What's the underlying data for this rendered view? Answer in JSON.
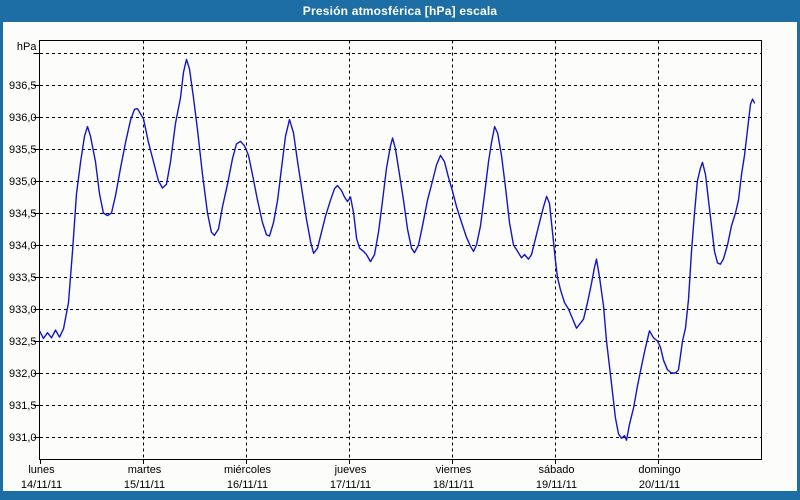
{
  "window": {
    "title": "Presión atmosférica [hPa] escala"
  },
  "colors": {
    "titlebar_bg": "#1C6EA4",
    "titlebar_text": "#FFFFFF",
    "frame": "#1C6EA4",
    "chart_bg": "#FCFDFB",
    "line": "#1414C8",
    "grid": "#000000",
    "axis_text": "#000000"
  },
  "chart_data": {
    "type": "line",
    "title": "Presión atmosférica [hPa] escala",
    "ylabel": "hPa",
    "grid": true,
    "legend": "none",
    "xlim_days": [
      0,
      7
    ],
    "ylim": [
      930.65,
      937.2
    ],
    "yticks": [
      {
        "v": 936.5,
        "label": "936,5"
      },
      {
        "v": 936.0,
        "label": "936,0"
      },
      {
        "v": 935.5,
        "label": "935,5"
      },
      {
        "v": 935.0,
        "label": "935,0"
      },
      {
        "v": 934.5,
        "label": "934,5"
      },
      {
        "v": 934.0,
        "label": "934,0"
      },
      {
        "v": 933.5,
        "label": "933,5"
      },
      {
        "v": 933.0,
        "label": "933,0"
      },
      {
        "v": 932.5,
        "label": "932,5"
      },
      {
        "v": 932.0,
        "label": "932,0"
      },
      {
        "v": 931.5,
        "label": "931,5"
      },
      {
        "v": 931.0,
        "label": "931,0"
      }
    ],
    "unlabeled_gridlines": [
      937.0
    ],
    "days": [
      {
        "name": "lunes",
        "date": "14/11/11"
      },
      {
        "name": "martes",
        "date": "15/11/11"
      },
      {
        "name": "miércoles",
        "date": "16/11/11"
      },
      {
        "name": "jueves",
        "date": "17/11/11"
      },
      {
        "name": "viernes",
        "date": "18/11/11"
      },
      {
        "name": "sábado",
        "date": "19/11/11"
      },
      {
        "name": "domingo",
        "date": "20/11/11"
      }
    ],
    "points": [
      [
        0.0,
        932.66
      ],
      [
        0.039,
        932.54
      ],
      [
        0.078,
        932.63
      ],
      [
        0.116,
        932.55
      ],
      [
        0.155,
        932.67
      ],
      [
        0.194,
        932.56
      ],
      [
        0.233,
        932.69
      ],
      [
        0.281,
        933.1
      ],
      [
        0.32,
        933.9
      ],
      [
        0.359,
        934.8
      ],
      [
        0.398,
        935.3
      ],
      [
        0.436,
        935.7
      ],
      [
        0.465,
        935.85
      ],
      [
        0.494,
        935.7
      ],
      [
        0.543,
        935.3
      ],
      [
        0.582,
        934.8
      ],
      [
        0.62,
        934.5
      ],
      [
        0.659,
        934.46
      ],
      [
        0.698,
        934.5
      ],
      [
        0.737,
        934.77
      ],
      [
        0.785,
        935.2
      ],
      [
        0.834,
        935.6
      ],
      [
        0.882,
        935.95
      ],
      [
        0.921,
        936.12
      ],
      [
        0.95,
        936.13
      ],
      [
        0.979,
        936.05
      ],
      [
        1.008,
        935.97
      ],
      [
        1.057,
        935.6
      ],
      [
        1.105,
        935.3
      ],
      [
        1.154,
        935.0
      ],
      [
        1.193,
        934.89
      ],
      [
        1.231,
        934.95
      ],
      [
        1.27,
        935.3
      ],
      [
        1.319,
        935.9
      ],
      [
        1.367,
        936.3
      ],
      [
        1.396,
        936.7
      ],
      [
        1.425,
        936.9
      ],
      [
        1.454,
        936.75
      ],
      [
        1.493,
        936.3
      ],
      [
        1.532,
        935.8
      ],
      [
        1.58,
        935.1
      ],
      [
        1.629,
        934.5
      ],
      [
        1.667,
        934.2
      ],
      [
        1.696,
        934.15
      ],
      [
        1.735,
        934.25
      ],
      [
        1.774,
        934.6
      ],
      [
        1.823,
        934.95
      ],
      [
        1.871,
        935.35
      ],
      [
        1.91,
        935.58
      ],
      [
        1.949,
        935.62
      ],
      [
        1.988,
        935.55
      ],
      [
        2.026,
        935.4
      ],
      [
        2.065,
        935.1
      ],
      [
        2.114,
        934.7
      ],
      [
        2.162,
        934.35
      ],
      [
        2.201,
        934.16
      ],
      [
        2.23,
        934.14
      ],
      [
        2.269,
        934.35
      ],
      [
        2.308,
        934.7
      ],
      [
        2.346,
        935.2
      ],
      [
        2.385,
        935.7
      ],
      [
        2.424,
        935.96
      ],
      [
        2.463,
        935.75
      ],
      [
        2.502,
        935.3
      ],
      [
        2.55,
        934.8
      ],
      [
        2.589,
        934.4
      ],
      [
        2.628,
        934.05
      ],
      [
        2.657,
        933.87
      ],
      [
        2.695,
        933.95
      ],
      [
        2.734,
        934.2
      ],
      [
        2.773,
        934.45
      ],
      [
        2.821,
        934.7
      ],
      [
        2.86,
        934.88
      ],
      [
        2.889,
        934.93
      ],
      [
        2.928,
        934.85
      ],
      [
        2.957,
        934.75
      ],
      [
        2.986,
        934.68
      ],
      [
        3.015,
        934.75
      ],
      [
        3.045,
        934.5
      ],
      [
        3.074,
        934.1
      ],
      [
        3.103,
        933.95
      ],
      [
        3.141,
        933.9
      ],
      [
        3.17,
        933.85
      ],
      [
        3.209,
        933.74
      ],
      [
        3.248,
        933.85
      ],
      [
        3.287,
        934.2
      ],
      [
        3.326,
        934.7
      ],
      [
        3.364,
        935.2
      ],
      [
        3.403,
        935.55
      ],
      [
        3.423,
        935.67
      ],
      [
        3.452,
        935.5
      ],
      [
        3.49,
        935.1
      ],
      [
        3.529,
        934.7
      ],
      [
        3.568,
        934.25
      ],
      [
        3.607,
        933.95
      ],
      [
        3.636,
        933.88
      ],
      [
        3.675,
        934.0
      ],
      [
        3.713,
        934.3
      ],
      [
        3.762,
        934.7
      ],
      [
        3.81,
        935.0
      ],
      [
        3.849,
        935.25
      ],
      [
        3.888,
        935.4
      ],
      [
        3.927,
        935.3
      ],
      [
        3.966,
        935.05
      ],
      [
        4.004,
        934.84
      ],
      [
        4.043,
        934.6
      ],
      [
        4.092,
        934.35
      ],
      [
        4.14,
        934.12
      ],
      [
        4.179,
        933.98
      ],
      [
        4.208,
        933.9
      ],
      [
        4.237,
        934.0
      ],
      [
        4.276,
        934.3
      ],
      [
        4.315,
        934.8
      ],
      [
        4.353,
        935.3
      ],
      [
        4.382,
        935.6
      ],
      [
        4.412,
        935.85
      ],
      [
        4.441,
        935.75
      ],
      [
        4.479,
        935.4
      ],
      [
        4.518,
        934.9
      ],
      [
        4.557,
        934.35
      ],
      [
        4.596,
        934.0
      ],
      [
        4.635,
        933.9
      ],
      [
        4.673,
        933.8
      ],
      [
        4.702,
        933.85
      ],
      [
        4.741,
        933.78
      ],
      [
        4.77,
        933.85
      ],
      [
        4.809,
        934.1
      ],
      [
        4.848,
        934.35
      ],
      [
        4.887,
        934.6
      ],
      [
        4.916,
        934.76
      ],
      [
        4.945,
        934.65
      ],
      [
        4.974,
        934.2
      ],
      [
        5.003,
        933.75
      ],
      [
        5.022,
        933.49
      ],
      [
        5.051,
        933.3
      ],
      [
        5.09,
        933.1
      ],
      [
        5.129,
        933.0
      ],
      [
        5.168,
        932.85
      ],
      [
        5.206,
        932.7
      ],
      [
        5.245,
        932.78
      ],
      [
        5.274,
        932.84
      ],
      [
        5.313,
        933.1
      ],
      [
        5.352,
        933.4
      ],
      [
        5.381,
        933.65
      ],
      [
        5.4,
        933.78
      ],
      [
        5.429,
        933.5
      ],
      [
        5.468,
        933.05
      ],
      [
        5.497,
        932.5
      ],
      [
        5.526,
        932.1
      ],
      [
        5.555,
        931.7
      ],
      [
        5.584,
        931.3
      ],
      [
        5.614,
        931.05
      ],
      [
        5.643,
        930.98
      ],
      [
        5.672,
        931.02
      ],
      [
        5.691,
        930.95
      ],
      [
        5.72,
        931.2
      ],
      [
        5.759,
        931.45
      ],
      [
        5.798,
        931.8
      ],
      [
        5.836,
        932.1
      ],
      [
        5.875,
        932.4
      ],
      [
        5.914,
        932.66
      ],
      [
        5.953,
        932.55
      ],
      [
        5.992,
        932.5
      ],
      [
        6.021,
        932.4
      ],
      [
        6.05,
        932.2
      ],
      [
        6.089,
        932.05
      ],
      [
        6.127,
        932.0
      ],
      [
        6.166,
        932.0
      ],
      [
        6.195,
        932.05
      ],
      [
        6.234,
        932.5
      ],
      [
        6.263,
        932.7
      ],
      [
        6.292,
        933.15
      ],
      [
        6.321,
        933.9
      ],
      [
        6.35,
        934.5
      ],
      [
        6.379,
        935.0
      ],
      [
        6.408,
        935.2
      ],
      [
        6.428,
        935.29
      ],
      [
        6.457,
        935.1
      ],
      [
        6.486,
        934.7
      ],
      [
        6.515,
        934.3
      ],
      [
        6.544,
        933.9
      ],
      [
        6.573,
        933.72
      ],
      [
        6.602,
        933.7
      ],
      [
        6.631,
        933.78
      ],
      [
        6.67,
        934.0
      ],
      [
        6.709,
        934.3
      ],
      [
        6.748,
        934.5
      ],
      [
        6.777,
        934.7
      ],
      [
        6.806,
        935.1
      ],
      [
        6.835,
        935.4
      ],
      [
        6.864,
        935.8
      ],
      [
        6.893,
        936.2
      ],
      [
        6.913,
        936.28
      ],
      [
        6.932,
        936.22
      ]
    ]
  }
}
